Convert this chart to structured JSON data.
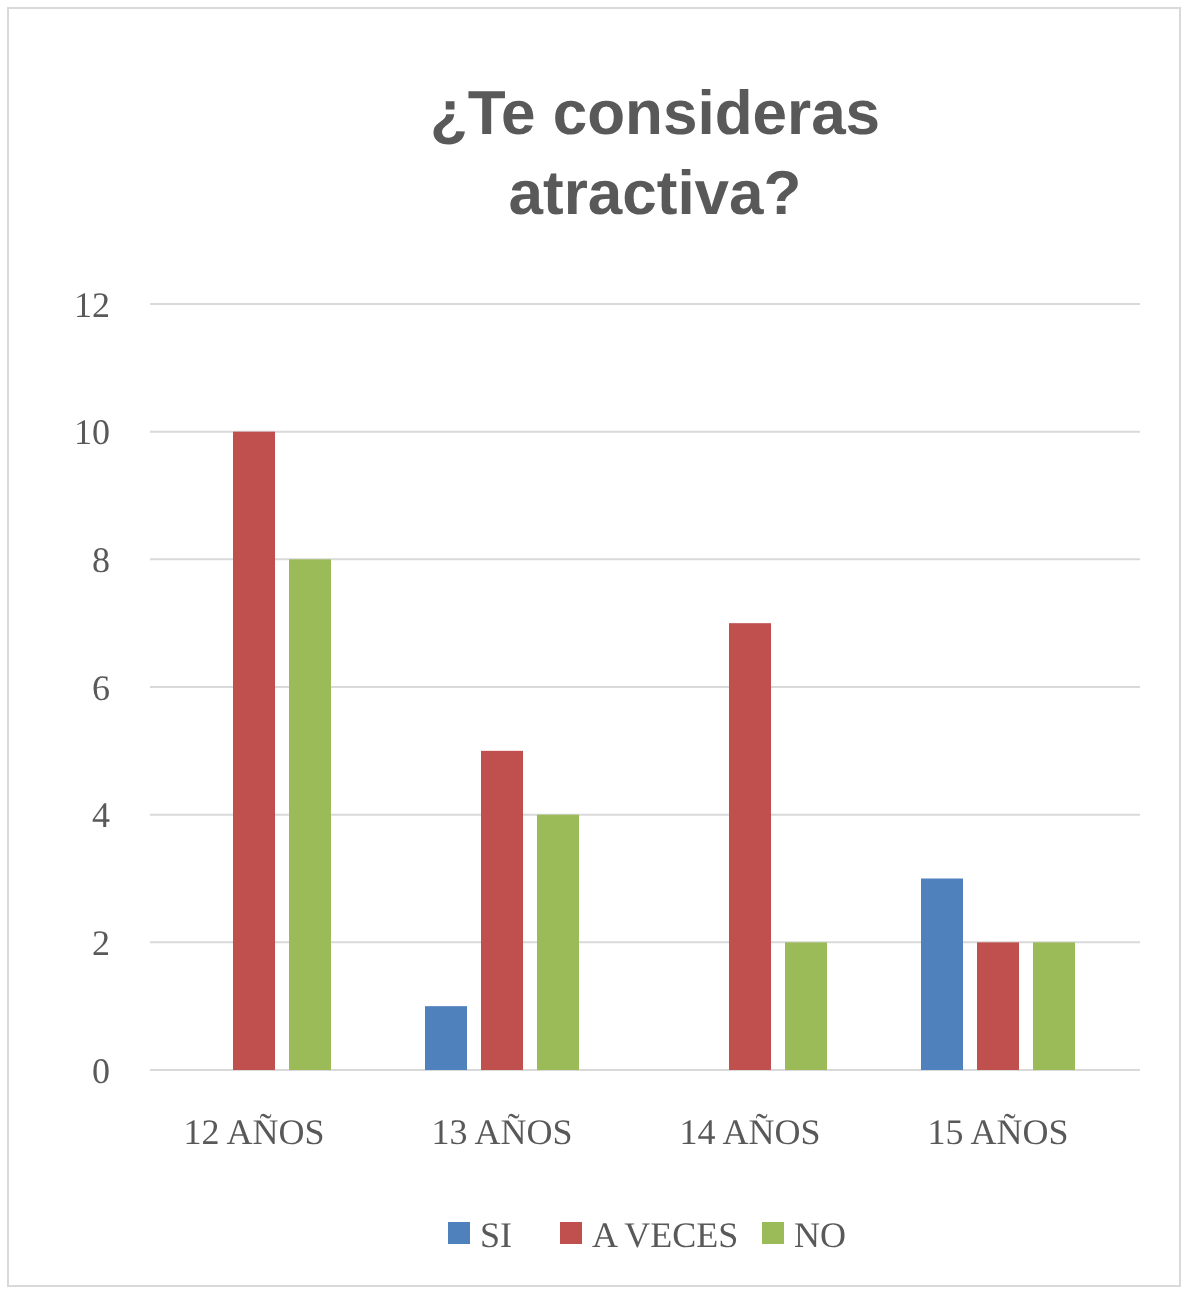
{
  "chart_data": {
    "type": "bar",
    "title": "¿Te consideras atractiva?",
    "categories": [
      "12 AÑOS",
      "13 AÑOS",
      "14 AÑOS",
      "15 AÑOS"
    ],
    "series": [
      {
        "name": "SI",
        "color": "#4f81bd",
        "values": [
          0,
          1,
          0,
          3
        ]
      },
      {
        "name": "A VECES",
        "color": "#c0504d",
        "values": [
          10,
          5,
          7,
          2
        ]
      },
      {
        "name": "NO",
        "color": "#9bbb59",
        "values": [
          8,
          4,
          2,
          2
        ]
      }
    ],
    "ylim": [
      0,
      12
    ],
    "yticks": [
      0,
      2,
      4,
      6,
      8,
      10,
      12
    ],
    "grid": "y",
    "legend": "bottom"
  }
}
